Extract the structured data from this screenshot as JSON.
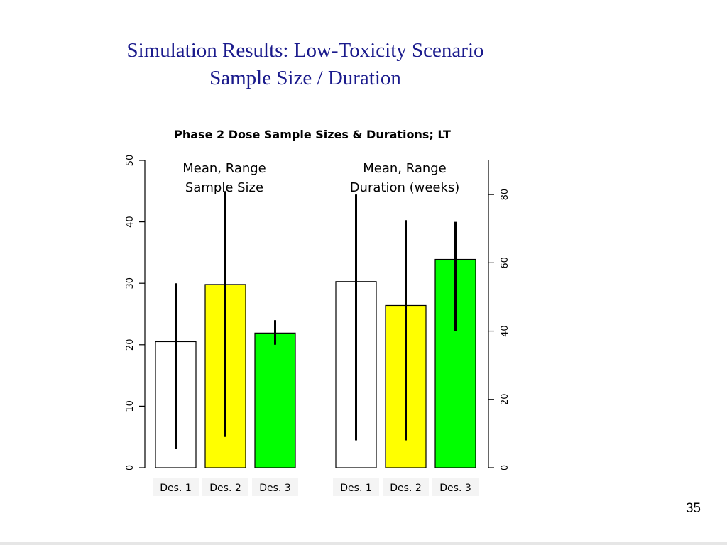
{
  "slide": {
    "title_line1": "Simulation Results: Low-Toxicity Scenario",
    "title_line2": "Sample Size / Duration",
    "page_number": "35"
  },
  "colors": {
    "title": "#1a1a8c",
    "des1": "#ffffff",
    "des2": "#ffff00",
    "des3": "#00ff00"
  },
  "chart_data": {
    "type": "bar",
    "title": "Phase 2 Dose Sample Sizes & Durations; LT",
    "categories": [
      "Des. 1",
      "Des. 2",
      "Des. 3"
    ],
    "panels": [
      {
        "annotation": [
          "Mean, Range",
          "Sample Size"
        ],
        "axis_side": "left",
        "ylim": [
          0,
          50
        ],
        "yticks": [
          0,
          10,
          20,
          30,
          40,
          50
        ],
        "bars": [
          {
            "category": "Des. 1",
            "mean": 20.5,
            "min": 3,
            "max": 30
          },
          {
            "category": "Des. 2",
            "mean": 29.8,
            "min": 5,
            "max": 45
          },
          {
            "category": "Des. 3",
            "mean": 21.9,
            "min": 20,
            "max": 24
          }
        ]
      },
      {
        "annotation": [
          "Mean, Range",
          "Duration (weeks)"
        ],
        "axis_side": "right",
        "ylim": [
          0,
          90
        ],
        "yticks": [
          0,
          20,
          40,
          60,
          80
        ],
        "bars": [
          {
            "category": "Des. 1",
            "mean": 54.5,
            "min": 8,
            "max": 80
          },
          {
            "category": "Des. 2",
            "mean": 47.5,
            "min": 8,
            "max": 72.5
          },
          {
            "category": "Des. 3",
            "mean": 61,
            "min": 40,
            "max": 72
          }
        ]
      }
    ],
    "bar_colors": [
      "#ffffff",
      "#ffff00",
      "#00ff00"
    ],
    "grid": false,
    "legend": "none"
  }
}
